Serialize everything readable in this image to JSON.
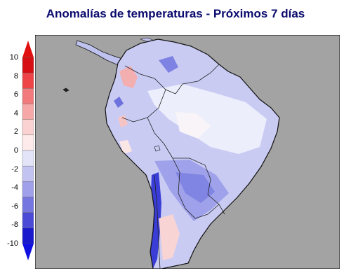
{
  "title": "Anomalías de temperaturas - Próximos 7 días",
  "legend": {
    "ticks": [
      "10",
      "8",
      "6",
      "4",
      "2",
      "0",
      "-2",
      "-4",
      "-6",
      "-8",
      "-10"
    ],
    "colors": [
      "#d50f14",
      "#ee4447",
      "#f27a7c",
      "#f6a7a7",
      "#fbd2d2",
      "#fdeaea",
      "#e4e4f8",
      "#c3c3f1",
      "#9f9fea",
      "#7676e0",
      "#4a4ad6",
      "#1a1acc"
    ],
    "top_arrow_color": "#e01010",
    "bottom_arrow_color": "#1010e0"
  },
  "map": {
    "ocean_color": "#a3a3a3",
    "land_base_color": "#c9cbf3",
    "coastline_color": "#111111"
  }
}
